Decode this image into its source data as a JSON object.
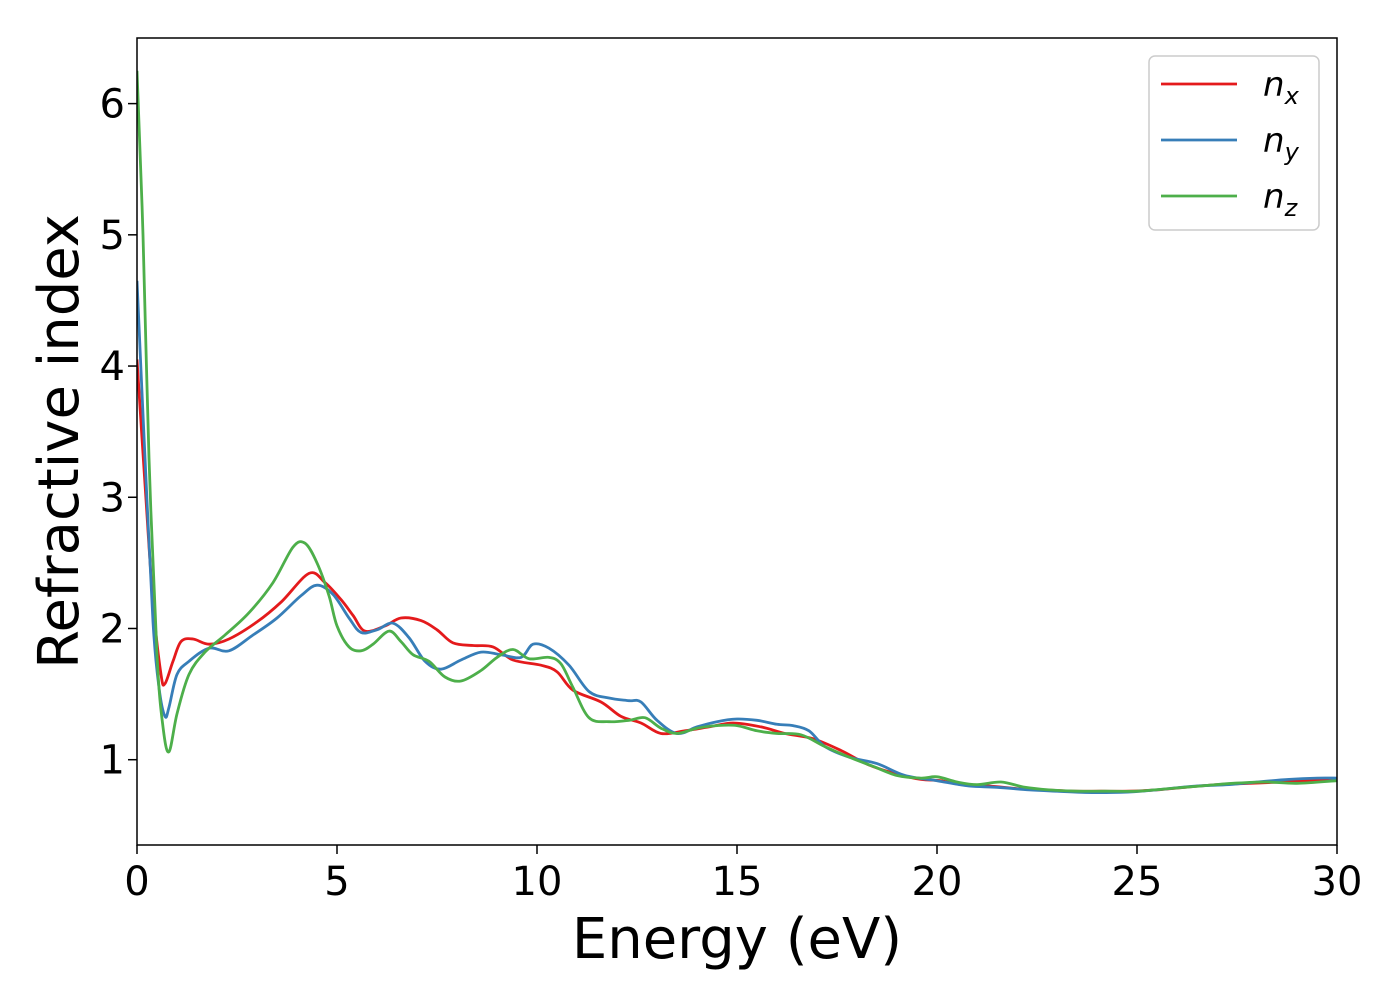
{
  "chart_data": {
    "type": "line",
    "title": "",
    "xlabel": "Energy (eV)",
    "ylabel": "Refractive index",
    "xlim": [
      0,
      30
    ],
    "ylim": [
      0.35,
      6.5
    ],
    "xticks": [
      0,
      5,
      10,
      15,
      20,
      25,
      30
    ],
    "yticks": [
      1,
      2,
      3,
      4,
      5,
      6
    ],
    "grid": false,
    "legend": "top-right",
    "series": [
      {
        "name": "n_x",
        "label_main": "n",
        "label_sub": "x",
        "color": "#e41a1c",
        "x": [
          0,
          0.2,
          0.4,
          0.6,
          0.7,
          0.9,
          1.1,
          1.4,
          1.8,
          2.3,
          3.0,
          3.6,
          4.3,
          4.7,
          5.1,
          5.4,
          5.7,
          6.2,
          6.6,
          7.1,
          7.5,
          7.9,
          8.4,
          8.9,
          9.4,
          10.1,
          10.5,
          10.9,
          11.6,
          12.1,
          12.6,
          13.1,
          13.7,
          14.3,
          14.9,
          15.6,
          16.2,
          16.9,
          17.6,
          18.3,
          19.0,
          19.6,
          20.1,
          20.6,
          21.3,
          22.0,
          22.7,
          23.4,
          24.1,
          24.8,
          25.5,
          26.2,
          27.0,
          27.8,
          28.6,
          29.3,
          30.0
        ],
        "y": [
          4.05,
          3.1,
          2.2,
          1.65,
          1.58,
          1.75,
          1.9,
          1.92,
          1.88,
          1.92,
          2.05,
          2.2,
          2.42,
          2.35,
          2.22,
          2.1,
          1.98,
          2.02,
          2.08,
          2.06,
          1.99,
          1.89,
          1.87,
          1.86,
          1.76,
          1.72,
          1.67,
          1.53,
          1.44,
          1.33,
          1.28,
          1.2,
          1.22,
          1.25,
          1.28,
          1.25,
          1.2,
          1.16,
          1.07,
          0.96,
          0.89,
          0.85,
          0.84,
          0.81,
          0.8,
          0.78,
          0.77,
          0.76,
          0.76,
          0.76,
          0.77,
          0.79,
          0.81,
          0.82,
          0.83,
          0.84,
          0.85
        ]
      },
      {
        "name": "n_y",
        "label_main": "n",
        "label_sub": "y",
        "color": "#377eb8",
        "x": [
          0,
          0.2,
          0.4,
          0.55,
          0.7,
          0.8,
          1.0,
          1.3,
          1.8,
          2.3,
          2.9,
          3.5,
          4.1,
          4.5,
          4.9,
          5.3,
          5.6,
          6.0,
          6.4,
          6.8,
          7.2,
          7.6,
          8.1,
          8.6,
          9.1,
          9.6,
          9.9,
          10.3,
          10.8,
          11.3,
          11.8,
          12.3,
          12.6,
          13.0,
          13.5,
          14.0,
          14.5,
          15.0,
          15.5,
          16.0,
          16.4,
          16.8,
          17.2,
          17.8,
          18.5,
          19.2,
          20.0,
          20.8,
          21.5,
          22.3,
          23.0,
          23.7,
          24.4,
          25.1,
          25.8,
          26.5,
          27.3,
          28.0,
          28.8,
          29.5,
          30.0
        ],
        "y": [
          4.65,
          3.3,
          2.05,
          1.55,
          1.33,
          1.4,
          1.65,
          1.75,
          1.85,
          1.83,
          1.95,
          2.08,
          2.25,
          2.33,
          2.26,
          2.08,
          1.97,
          1.99,
          2.04,
          1.93,
          1.75,
          1.69,
          1.76,
          1.82,
          1.8,
          1.78,
          1.88,
          1.85,
          1.72,
          1.52,
          1.47,
          1.45,
          1.44,
          1.3,
          1.2,
          1.25,
          1.29,
          1.31,
          1.3,
          1.27,
          1.26,
          1.22,
          1.1,
          1.02,
          0.97,
          0.88,
          0.84,
          0.8,
          0.79,
          0.77,
          0.76,
          0.75,
          0.75,
          0.76,
          0.78,
          0.8,
          0.81,
          0.83,
          0.85,
          0.86,
          0.86
        ]
      },
      {
        "name": "n_z",
        "label_main": "n",
        "label_sub": "z",
        "color": "#4daf4a",
        "x": [
          0,
          0.15,
          0.3,
          0.5,
          0.65,
          0.8,
          1.0,
          1.3,
          1.7,
          2.2,
          2.8,
          3.4,
          3.9,
          4.2,
          4.5,
          4.8,
          5.0,
          5.3,
          5.6,
          5.9,
          6.3,
          6.6,
          6.9,
          7.3,
          7.7,
          8.1,
          8.6,
          9.0,
          9.4,
          9.8,
          10.3,
          10.6,
          10.9,
          11.3,
          11.8,
          12.3,
          12.7,
          13.1,
          13.5,
          14.0,
          14.5,
          15.0,
          15.5,
          16.0,
          16.6,
          17.2,
          17.8,
          18.4,
          19.0,
          19.6,
          20.0,
          20.5,
          21.0,
          21.6,
          22.2,
          22.8,
          23.5,
          24.2,
          25.0,
          25.8,
          26.6,
          27.4,
          28.2,
          29.0,
          30.0
        ],
        "y": [
          6.25,
          5.0,
          3.3,
          1.8,
          1.25,
          1.06,
          1.35,
          1.65,
          1.82,
          1.95,
          2.12,
          2.35,
          2.62,
          2.65,
          2.5,
          2.25,
          2.02,
          1.86,
          1.83,
          1.88,
          1.98,
          1.9,
          1.8,
          1.75,
          1.63,
          1.6,
          1.68,
          1.78,
          1.84,
          1.77,
          1.78,
          1.73,
          1.55,
          1.32,
          1.29,
          1.3,
          1.32,
          1.24,
          1.2,
          1.24,
          1.26,
          1.26,
          1.22,
          1.2,
          1.19,
          1.1,
          1.02,
          0.95,
          0.88,
          0.86,
          0.87,
          0.83,
          0.81,
          0.83,
          0.79,
          0.77,
          0.76,
          0.76,
          0.76,
          0.78,
          0.8,
          0.82,
          0.83,
          0.82,
          0.84
        ]
      }
    ]
  }
}
